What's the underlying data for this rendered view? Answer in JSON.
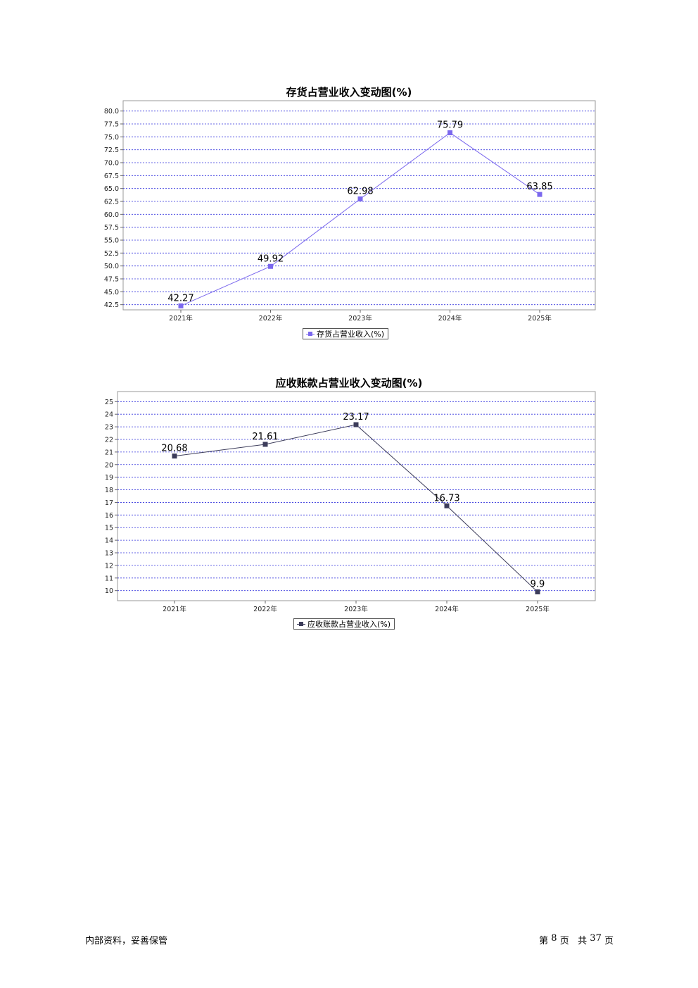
{
  "chart_data": [
    {
      "type": "line",
      "title": "存货占营业收入变动图(%)",
      "categories": [
        "2021年",
        "2022年",
        "2023年",
        "2024年",
        "2025年"
      ],
      "series": [
        {
          "name": "存货占营业收入(%)",
          "values": [
            42.27,
            49.92,
            62.98,
            75.79,
            63.85
          ],
          "color": "#7b68ee"
        }
      ],
      "y_ticks": [
        "80.0",
        "77.5",
        "75.0",
        "72.5",
        "70.0",
        "67.5",
        "65.0",
        "62.5",
        "60.0",
        "57.5",
        "55.0",
        "52.5",
        "50.0",
        "47.5",
        "45.0",
        "42.5"
      ],
      "ylim": [
        41.5,
        82.0
      ],
      "grid": "horizontal dashed",
      "legend_placement": "bottom-center"
    },
    {
      "type": "line",
      "title": "应收账款占营业收入变动图(%)",
      "categories": [
        "2021年",
        "2022年",
        "2023年",
        "2024年",
        "2025年"
      ],
      "series": [
        {
          "name": "应收账款占营业收入(%)",
          "values": [
            20.68,
            21.61,
            23.17,
            16.73,
            9.9
          ],
          "color": "#3c3c5a"
        }
      ],
      "y_ticks": [
        "25",
        "24",
        "23",
        "22",
        "21",
        "20",
        "19",
        "18",
        "17",
        "16",
        "15",
        "14",
        "13",
        "12",
        "11",
        "10"
      ],
      "ylim": [
        9.2,
        25.8
      ],
      "grid": "horizontal dashed",
      "legend_placement": "bottom-center"
    }
  ],
  "footer": {
    "left": "内部资料，妥善保管",
    "page_prefix": "第",
    "page_number": "8",
    "page_mid": "页",
    "total_prefix": "共",
    "total_pages": "37",
    "page_suffix": "页"
  }
}
